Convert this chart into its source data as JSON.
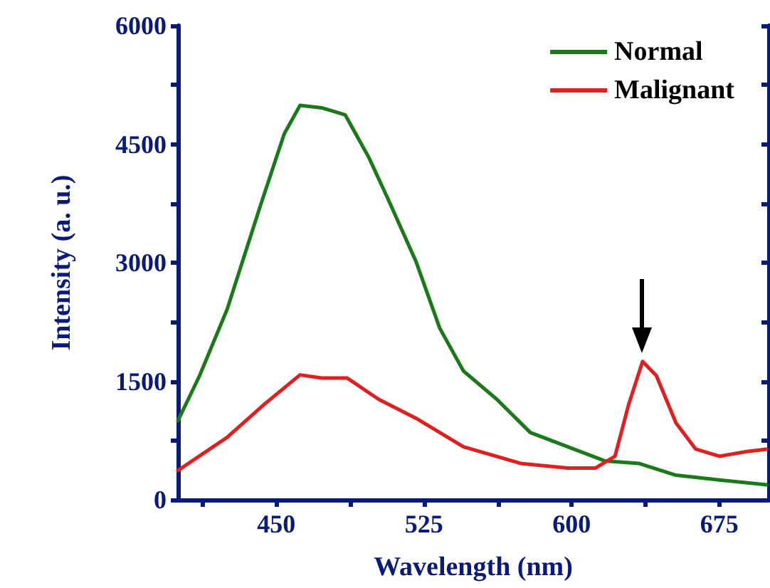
{
  "chart_data": {
    "type": "line",
    "xlabel": "Wavelength (nm)",
    "ylabel": "Intensity (a. u.)",
    "xlim": [
      400,
      700
    ],
    "xticks": [
      {
        "value": 412.5,
        "label": null
      },
      450,
      {
        "value": 487.5,
        "label": null
      },
      525,
      {
        "value": 562.5,
        "label": null
      },
      600,
      {
        "value": 637.5,
        "label": null
      },
      675
    ],
    "ylim": [
      0,
      6000
    ],
    "yticks": [
      0,
      {
        "value": 750,
        "label": null
      },
      1500,
      {
        "value": 2250,
        "label": null
      },
      3000,
      {
        "value": 3750,
        "label": null
      },
      4500,
      {
        "value": 5250,
        "label": null
      },
      6000
    ],
    "grid": false,
    "legend": "top right",
    "marker": "none",
    "line_style": "solid",
    "series": [
      {
        "name": "Normal",
        "color": "#1a7a1a",
        "x": [
          400,
          411,
          425,
          442,
          454,
          462,
          473,
          485,
          497,
          507,
          521,
          533,
          545,
          562,
          579,
          598,
          617,
          634,
          653,
          675,
          699
        ],
        "values": [
          1000,
          1570,
          2410,
          3730,
          4630,
          4990,
          4960,
          4870,
          4330,
          3790,
          3010,
          2170,
          1630,
          1270,
          850,
          670,
          490,
          460,
          310,
          250,
          190
        ]
      },
      {
        "name": "Malignant",
        "color": "#e02020",
        "x": [
          400,
          425,
          444,
          462,
          473,
          486,
          502,
          521,
          545,
          574,
          598,
          612,
          622,
          629,
          636,
          643,
          653,
          663,
          675,
          689,
          699
        ],
        "values": [
          370,
          790,
          1210,
          1580,
          1540,
          1540,
          1270,
          1030,
          670,
          460,
          400,
          400,
          550,
          1210,
          1750,
          1570,
          970,
          640,
          550,
          610,
          640
        ]
      }
    ]
  }
}
